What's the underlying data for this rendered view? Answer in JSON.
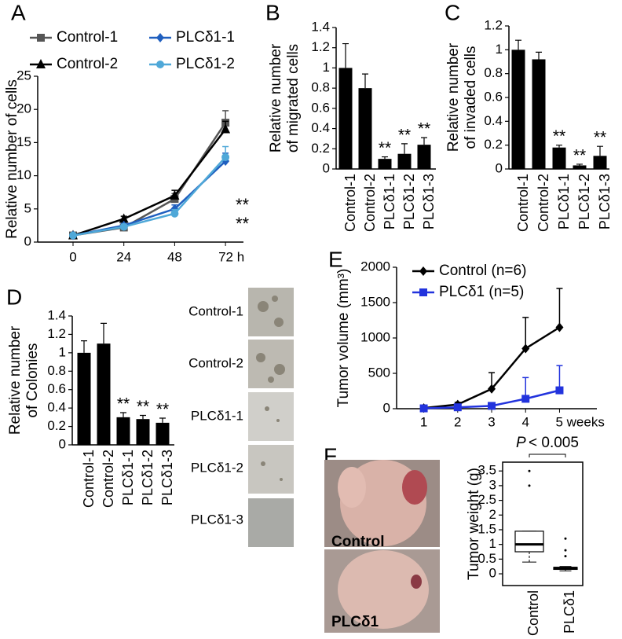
{
  "panel_labels": [
    "A",
    "B",
    "C",
    "D",
    "E",
    "F"
  ],
  "chart_data": [
    {
      "type": "line",
      "ylabel": "Relative number of  cells",
      "categories": [
        "0",
        "24",
        "48",
        "72 h"
      ],
      "series": [
        {
          "name": "Control-1",
          "color": "#555555",
          "marker": "square",
          "values": [
            1,
            2.2,
            6.5,
            18
          ],
          "errors": [
            0.2,
            0.3,
            0.8,
            1.8
          ]
        },
        {
          "name": "Control-2",
          "color": "#000000",
          "marker": "triangle",
          "values": [
            1,
            3.5,
            7,
            17
          ],
          "errors": [
            0.2,
            0.4,
            0.8,
            1.2
          ]
        },
        {
          "name": "PLCδ1-1",
          "color": "#1f5fbf",
          "marker": "diamond",
          "values": [
            1,
            2.5,
            5,
            12.2
          ],
          "errors": [
            0.2,
            0.3,
            0.6,
            1.2
          ]
        },
        {
          "name": "PLCδ1-2",
          "color": "#4fa8d8",
          "marker": "circle",
          "values": [
            1,
            2.3,
            4.3,
            12.8
          ],
          "errors": [
            0.2,
            0.3,
            0.6,
            1.6
          ]
        }
      ],
      "ylim": [
        0,
        25
      ],
      "yticks": [
        0,
        5,
        10,
        15,
        20,
        25
      ],
      "annotations": [
        "**",
        "**"
      ]
    },
    {
      "type": "bar",
      "ylabel": [
        "Relative number",
        "of migrated cells"
      ],
      "categories": [
        "Control-1",
        "Control-2",
        "PLCδ1-1",
        "PLCδ1-2",
        "PLCδ1-3"
      ],
      "values": [
        1,
        0.8,
        0.1,
        0.15,
        0.24
      ],
      "errors": [
        0.24,
        0.14,
        0.02,
        0.1,
        0.07
      ],
      "significance": [
        null,
        null,
        "**",
        "**",
        "**"
      ],
      "color": "#000000",
      "ylim": [
        0,
        1.4
      ],
      "yticks": [
        0,
        0.2,
        0.4,
        0.6,
        0.8,
        1,
        1.2,
        1.4
      ]
    },
    {
      "type": "bar",
      "ylabel": [
        "Relative number",
        "of invaded cells"
      ],
      "categories": [
        "Control-1",
        "Control-2",
        "PLCδ1-1",
        "PLCδ1-2",
        "PLCδ1-3"
      ],
      "values": [
        1,
        0.92,
        0.18,
        0.03,
        0.11
      ],
      "errors": [
        0.08,
        0.06,
        0.02,
        0.01,
        0.08
      ],
      "significance": [
        null,
        null,
        "**",
        "**",
        "**"
      ],
      "color": "#000000",
      "ylim": [
        0,
        1.2
      ],
      "yticks": [
        0,
        0.2,
        0.4,
        0.6,
        0.8,
        1,
        1.2
      ]
    },
    {
      "type": "bar",
      "ylabel": [
        "Relative number",
        "of Colonies"
      ],
      "categories": [
        "Control-1",
        "Control-2",
        "PLCδ1-1",
        "PLCδ1-2",
        "PLCδ1-3"
      ],
      "values": [
        1,
        1.1,
        0.3,
        0.28,
        0.24
      ],
      "errors": [
        0.13,
        0.22,
        0.05,
        0.04,
        0.05
      ],
      "significance": [
        null,
        null,
        "**",
        "**",
        "**"
      ],
      "color": "#000000",
      "ylim": [
        0,
        1.4
      ],
      "yticks": [
        0,
        0.2,
        0.4,
        0.6,
        0.8,
        1,
        1.2,
        1.4
      ]
    },
    {
      "type": "line",
      "ylabel": "Tumor volume (mm³)",
      "x": [
        1,
        2,
        3,
        4,
        5
      ],
      "series": [
        {
          "name": "Control (n=6)",
          "color": "#000000",
          "marker": "diamond",
          "values": [
            10,
            60,
            280,
            850,
            1150
          ],
          "errors": [
            5,
            30,
            230,
            440,
            550
          ]
        },
        {
          "name": "PLCδ1 (n=5)",
          "color": "#2233dd",
          "marker": "square",
          "values": [
            5,
            20,
            40,
            140,
            260
          ],
          "errors": [
            5,
            10,
            30,
            300,
            350
          ]
        }
      ],
      "xlim": [
        0.2,
        6.1
      ],
      "xticks": [
        1,
        2,
        3,
        4,
        {
          "value": 5,
          "label": "5 weeks"
        }
      ],
      "ylim": [
        0,
        2000
      ],
      "yticks": [
        0,
        500,
        1000,
        1500,
        2000
      ]
    },
    {
      "type": "box",
      "ylabel": "Tumor weight (g)",
      "categories": [
        "Control",
        "PLCδ1"
      ],
      "boxes": [
        {
          "whislo": 0.4,
          "q1": 0.75,
          "med": 1.0,
          "q3": 1.45,
          "whishi": 1.45,
          "fliers": [
            3.0,
            3.5
          ]
        },
        {
          "whislo": 0.1,
          "q1": 0.15,
          "med": 0.2,
          "q3": 0.22,
          "whishi": 0.25,
          "fliers": [
            0.6,
            0.8,
            1.2
          ]
        }
      ],
      "ylim": [
        -0.4,
        3.8
      ],
      "yticks": [
        0,
        0.5,
        1,
        1.5,
        2,
        2.5,
        3,
        3.5
      ],
      "annotation": {
        "prefix": "P",
        "text": "< 0.005"
      }
    }
  ],
  "colony_images": {
    "labels": [
      "Control-1",
      "Control-2",
      "PLCδ1-1",
      "PLCδ1-2",
      "PLCδ1-3"
    ]
  },
  "mouse_images": {
    "labels": [
      "Control",
      "PLCδ1"
    ]
  }
}
